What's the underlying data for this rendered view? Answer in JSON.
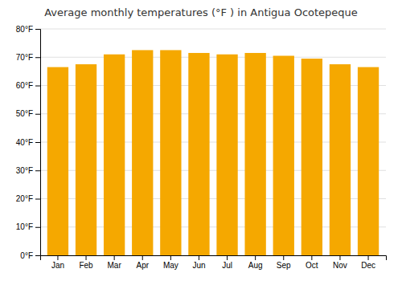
{
  "chart_data": {
    "type": "bar",
    "title": "Average monthly temperatures (°F ) in Antigua Ocotepeque",
    "categories": [
      "Jan",
      "Feb",
      "Mar",
      "Apr",
      "May",
      "Jun",
      "Jul",
      "Aug",
      "Sep",
      "Oct",
      "Nov",
      "Dec"
    ],
    "values": [
      66.5,
      67.5,
      71.0,
      72.5,
      72.5,
      71.5,
      71.0,
      71.5,
      70.5,
      69.5,
      67.5,
      66.5
    ],
    "color": "#F5A800",
    "ylim": [
      0,
      80
    ],
    "yticks": [
      {
        "value": 0,
        "label": "0°F"
      },
      {
        "value": 10,
        "label": "10°F"
      },
      {
        "value": 20,
        "label": "20°F"
      },
      {
        "value": 30,
        "label": "30°F"
      },
      {
        "value": 40,
        "label": "40°F"
      },
      {
        "value": 50,
        "label": "50°F"
      },
      {
        "value": 60,
        "label": "60°F"
      },
      {
        "value": 70,
        "label": "70°F"
      },
      {
        "value": 80,
        "label": "80°F"
      }
    ],
    "grid": true
  }
}
